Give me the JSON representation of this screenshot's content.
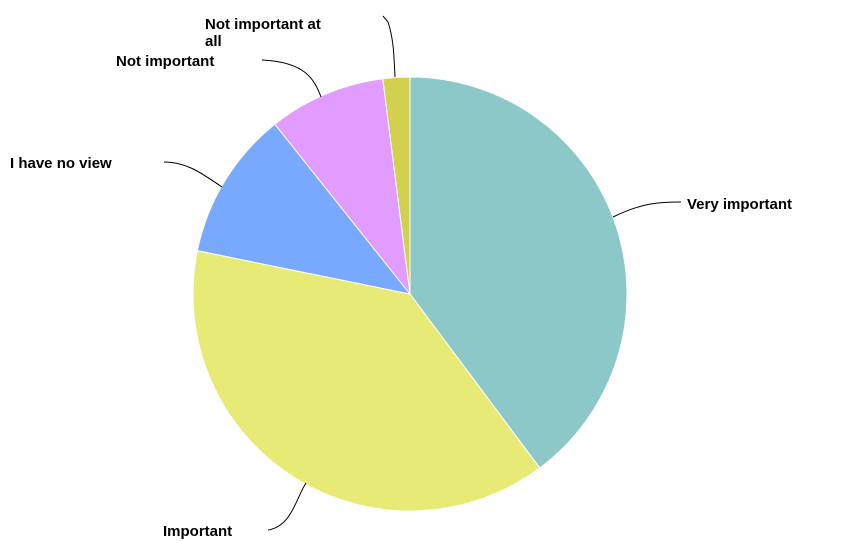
{
  "chart_data": {
    "type": "pie",
    "title": "",
    "start_angle_deg": 0,
    "direction": "clockwise",
    "slices": [
      {
        "label": "Very important",
        "value": 39.8,
        "color": "#8dc8c9"
      },
      {
        "label": "Important",
        "value": 38.4,
        "color": "#e7eb75"
      },
      {
        "label": "I have no view",
        "value": 11.1,
        "color": "#78a9ff"
      },
      {
        "label": "Not important",
        "value": 8.7,
        "color": "#e29bff"
      },
      {
        "label": "Not important at all",
        "value": 2.0,
        "color": "#d3d050"
      }
    ]
  }
}
